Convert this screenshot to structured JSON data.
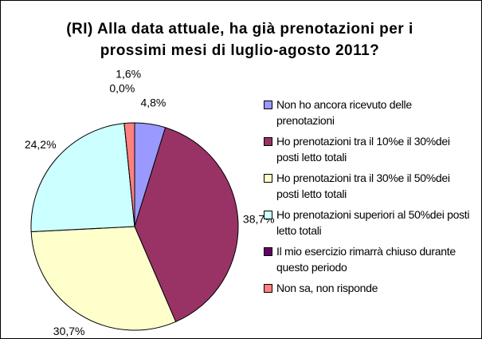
{
  "chart_data": {
    "type": "pie",
    "title": "(RI) Alla data attuale, ha già prenotazioni per i prossimi mesi di luglio-agosto 2011?",
    "categories": [
      "Non ho ancora ricevuto delle prenotazioni",
      "Ho prenotazioni tra il 10%e il 30%dei posti letto totali",
      "Ho prenotazioni tra il 30%e il 50%dei posti letto totali",
      "Ho prenotazioni superiori al 50%dei posti letto totali",
      "Il mio esercizio rimarrà chiuso durante questo periodo",
      "Non sa, non risponde"
    ],
    "values": [
      4.8,
      38.7,
      30.7,
      24.2,
      0.0,
      1.6
    ],
    "value_labels": [
      "4,8%",
      "38,7%",
      "30,7%",
      "24,2%",
      "0,0%",
      "1,6%"
    ],
    "colors": [
      "#9999ff",
      "#993366",
      "#ffffcc",
      "#ccffff",
      "#660066",
      "#ff8080"
    ],
    "legend": "right"
  }
}
